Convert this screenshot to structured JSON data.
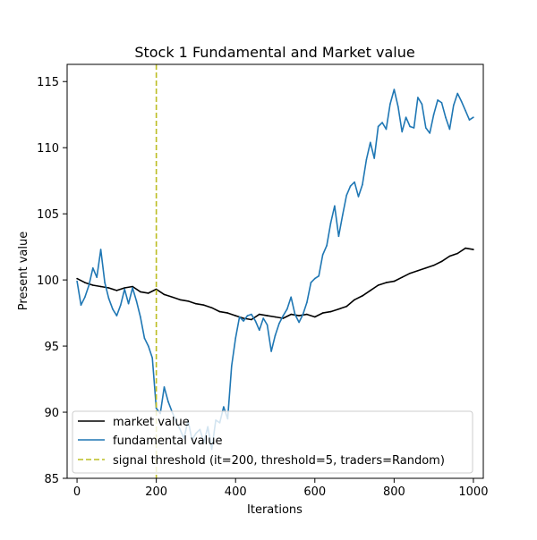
{
  "chart_data": {
    "type": "line",
    "title": "Stock 1 Fundamental and Market value",
    "xlabel": "Iterations",
    "ylabel": "Present value",
    "xlim": [
      -25,
      1025
    ],
    "ylim": [
      85,
      116.3
    ],
    "xticks": [
      0,
      200,
      400,
      600,
      800,
      1000
    ],
    "xtick_labels": [
      "0",
      "200",
      "400",
      "600",
      "800",
      "1000"
    ],
    "yticks": [
      85,
      90,
      95,
      100,
      105,
      110,
      115
    ],
    "ytick_labels": [
      "85",
      "90",
      "95",
      "100",
      "105",
      "110",
      "115"
    ],
    "grid": false,
    "legend_position": "lower-left",
    "series": [
      {
        "name": "market value",
        "color": "#000000",
        "style": "solid",
        "x": [
          0,
          20,
          40,
          60,
          80,
          100,
          120,
          140,
          160,
          180,
          200,
          220,
          240,
          260,
          280,
          300,
          320,
          340,
          360,
          380,
          400,
          420,
          440,
          460,
          480,
          500,
          520,
          540,
          560,
          580,
          600,
          620,
          640,
          660,
          680,
          700,
          720,
          740,
          760,
          780,
          800,
          820,
          840,
          860,
          880,
          900,
          920,
          940,
          960,
          980,
          1000
        ],
        "y": [
          100.1,
          99.8,
          99.6,
          99.5,
          99.4,
          99.2,
          99.4,
          99.5,
          99.1,
          99.0,
          99.3,
          98.9,
          98.7,
          98.5,
          98.4,
          98.2,
          98.1,
          97.9,
          97.6,
          97.5,
          97.3,
          97.1,
          97.0,
          97.4,
          97.3,
          97.2,
          97.1,
          97.4,
          97.3,
          97.4,
          97.2,
          97.5,
          97.6,
          97.8,
          98.0,
          98.5,
          98.8,
          99.2,
          99.6,
          99.8,
          99.9,
          100.2,
          100.5,
          100.7,
          100.9,
          101.1,
          101.4,
          101.8,
          102.0,
          102.4,
          102.3
        ]
      },
      {
        "name": "fundamental value",
        "color": "#1f77b4",
        "style": "solid",
        "x": [
          0,
          10,
          20,
          30,
          40,
          50,
          60,
          70,
          80,
          90,
          100,
          110,
          120,
          130,
          140,
          150,
          160,
          170,
          180,
          190,
          200,
          210,
          220,
          230,
          240,
          250,
          260,
          270,
          280,
          290,
          300,
          310,
          320,
          330,
          340,
          350,
          360,
          370,
          380,
          390,
          400,
          410,
          420,
          430,
          440,
          450,
          460,
          470,
          480,
          490,
          500,
          510,
          520,
          530,
          540,
          550,
          560,
          570,
          580,
          590,
          600,
          610,
          620,
          630,
          640,
          650,
          660,
          670,
          680,
          690,
          700,
          710,
          720,
          730,
          740,
          750,
          760,
          770,
          780,
          790,
          800,
          810,
          820,
          830,
          840,
          850,
          860,
          870,
          880,
          890,
          900,
          910,
          920,
          930,
          940,
          950,
          960,
          970,
          980,
          990,
          1000
        ],
        "y": [
          99.9,
          98.1,
          98.7,
          99.6,
          100.9,
          100.2,
          102.3,
          99.8,
          98.6,
          97.8,
          97.3,
          98.1,
          99.3,
          98.2,
          99.4,
          98.4,
          97.2,
          95.6,
          95.0,
          94.1,
          90.3,
          89.9,
          91.9,
          90.8,
          90.0,
          89.3,
          88.7,
          88.0,
          89.4,
          87.9,
          88.4,
          88.7,
          87.7,
          88.9,
          87.2,
          89.4,
          89.2,
          90.4,
          89.5,
          93.5,
          95.6,
          97.2,
          96.9,
          97.3,
          97.4,
          96.9,
          96.2,
          97.1,
          96.6,
          94.6,
          95.8,
          96.7,
          97.3,
          97.8,
          98.7,
          97.4,
          96.8,
          97.4,
          98.3,
          99.8,
          100.1,
          100.3,
          101.9,
          102.6,
          104.3,
          105.6,
          103.3,
          104.9,
          106.4,
          107.1,
          107.4,
          106.3,
          107.2,
          109.1,
          110.4,
          109.2,
          111.6,
          111.9,
          111.4,
          113.3,
          114.4,
          113.1,
          111.2,
          112.3,
          111.6,
          111.5,
          113.8,
          113.3,
          111.5,
          111.1,
          112.5,
          113.6,
          113.4,
          112.3,
          111.4,
          113.2,
          114.1,
          113.5,
          112.8,
          112.1,
          112.3
        ]
      }
    ],
    "vlines": [
      {
        "name": "signal threshold (it=200, threshold=5, traders=Random)",
        "x": 200,
        "color": "#bcbd22",
        "style": "dashed"
      }
    ]
  }
}
